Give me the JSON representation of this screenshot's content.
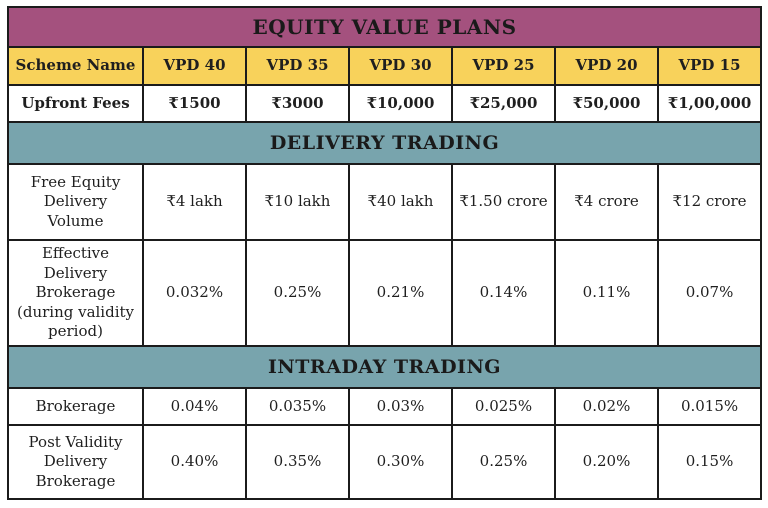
{
  "table": {
    "title": "EQUITY VALUE PLANS",
    "colors": {
      "title_bg": "#a4517e",
      "header_bg": "#f8d25b",
      "section_bg": "#78a4ad",
      "border": "#1b1b1b",
      "text": "#1f1f1f"
    },
    "columns": [
      "Scheme Name",
      "VPD 40",
      "VPD 35",
      "VPD 30",
      "VPD 25",
      "VPD 20",
      "VPD 15"
    ],
    "upfront": {
      "label": "Upfront Fees",
      "values": [
        "₹1500",
        "₹3000",
        "₹10,000",
        "₹25,000",
        "₹50,000",
        "₹1,00,000"
      ]
    },
    "sections": [
      {
        "title": "DELIVERY TRADING",
        "rows": [
          {
            "label": "Free Equity Delivery Volume",
            "values": [
              "₹4 lakh",
              "₹10 lakh",
              "₹40 lakh",
              "₹1.50 crore",
              "₹4 crore",
              "₹12 crore"
            ]
          },
          {
            "label": "Effective Delivery Brokerage (during validity period)",
            "values": [
              "0.032%",
              "0.25%",
              "0.21%",
              "0.14%",
              "0.11%",
              "0.07%"
            ]
          }
        ]
      },
      {
        "title": "INTRADAY TRADING",
        "rows": [
          {
            "label": "Brokerage",
            "values": [
              "0.04%",
              "0.035%",
              "0.03%",
              "0.025%",
              "0.02%",
              "0.015%"
            ]
          },
          {
            "label": "Post Validity Delivery Brokerage",
            "values": [
              "0.40%",
              "0.35%",
              "0.30%",
              "0.25%",
              "0.20%",
              "0.15%"
            ]
          }
        ]
      }
    ]
  }
}
